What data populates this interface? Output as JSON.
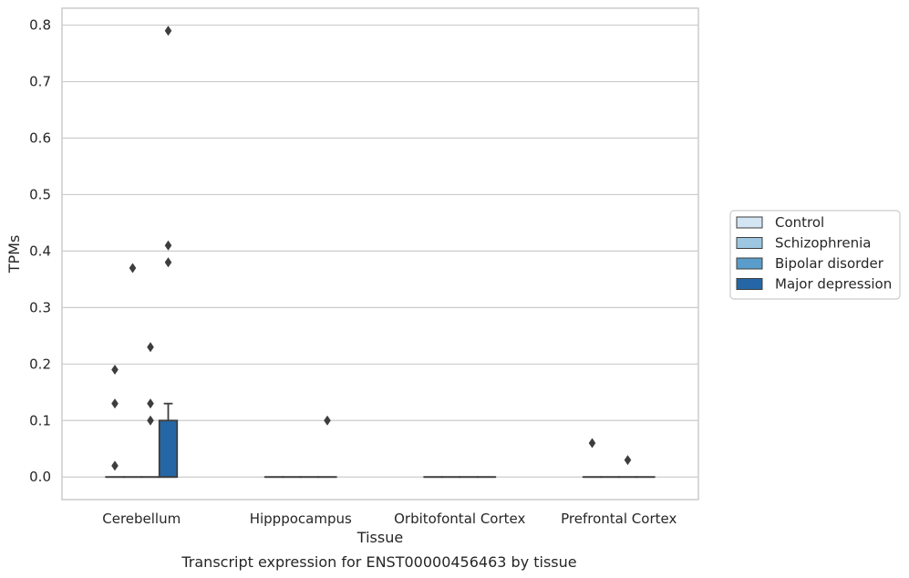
{
  "caption": "Transcript expression for ENST00000456463 by tissue",
  "chart_data": {
    "type": "box",
    "title": "",
    "xlabel": "Tissue",
    "ylabel": "TPMs",
    "ylim": [
      -0.04,
      0.83
    ],
    "yticks": [
      "0.0",
      "0.1",
      "0.2",
      "0.3",
      "0.4",
      "0.5",
      "0.6",
      "0.7",
      "0.8"
    ],
    "grid": true,
    "legend_position": "right",
    "categories": [
      "Cerebellum",
      "Hipppocampus",
      "Orbitofontal Cortex",
      "Prefrontal Cortex"
    ],
    "series": [
      {
        "name": "Control",
        "color": "#d3e4f3",
        "boxes": [
          {
            "q1": 0,
            "median": 0,
            "q3": 0,
            "whisker_low": 0,
            "whisker_high": 0,
            "outliers": [
              0.02,
              0.13,
              0.19
            ]
          },
          {
            "q1": 0,
            "median": 0,
            "q3": 0,
            "whisker_low": 0,
            "whisker_high": 0,
            "outliers": []
          },
          {
            "q1": 0,
            "median": 0,
            "q3": 0,
            "whisker_low": 0,
            "whisker_high": 0,
            "outliers": []
          },
          {
            "q1": 0,
            "median": 0,
            "q3": 0,
            "whisker_low": 0,
            "whisker_high": 0,
            "outliers": [
              0.06
            ]
          }
        ]
      },
      {
        "name": "Schizophrenia",
        "color": "#9dc7e0",
        "boxes": [
          {
            "q1": 0,
            "median": 0,
            "q3": 0,
            "whisker_low": 0,
            "whisker_high": 0,
            "outliers": [
              0.37
            ]
          },
          {
            "q1": 0,
            "median": 0,
            "q3": 0,
            "whisker_low": 0,
            "whisker_high": 0,
            "outliers": []
          },
          {
            "q1": 0,
            "median": 0,
            "q3": 0,
            "whisker_low": 0,
            "whisker_high": 0,
            "outliers": []
          },
          {
            "q1": 0,
            "median": 0,
            "q3": 0,
            "whisker_low": 0,
            "whisker_high": 0,
            "outliers": []
          }
        ]
      },
      {
        "name": "Bipolar disorder",
        "color": "#5b9dca",
        "boxes": [
          {
            "q1": 0,
            "median": 0,
            "q3": 0,
            "whisker_low": 0,
            "whisker_high": 0,
            "outliers": [
              0.1,
              0.13,
              0.23
            ]
          },
          {
            "q1": 0,
            "median": 0,
            "q3": 0,
            "whisker_low": 0,
            "whisker_high": 0,
            "outliers": []
          },
          {
            "q1": 0,
            "median": 0,
            "q3": 0,
            "whisker_low": 0,
            "whisker_high": 0,
            "outliers": []
          },
          {
            "q1": 0,
            "median": 0,
            "q3": 0,
            "whisker_low": 0,
            "whisker_high": 0,
            "outliers": [
              0.03
            ]
          }
        ]
      },
      {
        "name": "Major depression",
        "color": "#2567a6",
        "boxes": [
          {
            "q1": 0,
            "median": 0,
            "q3": 0.1,
            "whisker_low": 0,
            "whisker_high": 0.13,
            "outliers": [
              0.38,
              0.41,
              0.79
            ]
          },
          {
            "q1": 0,
            "median": 0,
            "q3": 0,
            "whisker_low": 0,
            "whisker_high": 0,
            "outliers": [
              0.1
            ]
          },
          {
            "q1": 0,
            "median": 0,
            "q3": 0,
            "whisker_low": 0,
            "whisker_high": 0,
            "outliers": []
          },
          {
            "q1": 0,
            "median": 0,
            "q3": 0,
            "whisker_low": 0,
            "whisker_high": 0,
            "outliers": []
          }
        ]
      }
    ]
  }
}
